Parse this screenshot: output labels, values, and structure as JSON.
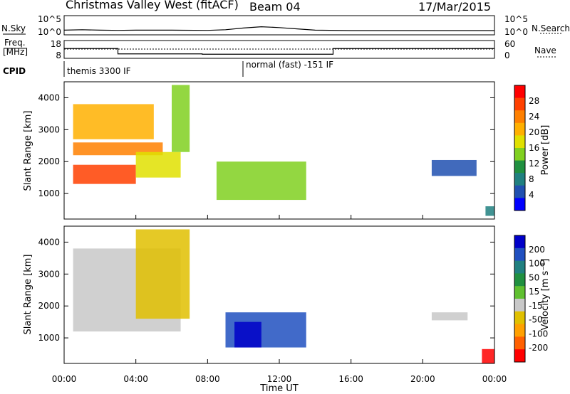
{
  "header": {
    "title": "Christmas Valley West (fitACF)",
    "beam": "Beam 04",
    "date": "17/Mar/2015"
  },
  "top_panels": {
    "nsky_label": "N.Sky",
    "nsearch_label": "N.Search",
    "freq_label_line1": "Freq.",
    "freq_label_line2": "[MHz]",
    "nave_label": "Nave",
    "cpid_label": "CPID",
    "noise_left_ticks": [
      "10^5",
      "10^0"
    ],
    "noise_right_ticks": [
      "10^5",
      "10^0"
    ],
    "freq_left_ticks": [
      "18",
      "8"
    ],
    "freq_right_ticks": [
      "60",
      "0"
    ],
    "cpid_segments": [
      "themis 3300 IF",
      "normal (fast) -151 IF"
    ]
  },
  "axes": {
    "ylabel": "Slant Range [km]",
    "xlabel": "Time UT",
    "x_ticks": [
      "00:00",
      "04:00",
      "08:00",
      "12:00",
      "16:00",
      "20:00",
      "00:00"
    ],
    "y_ticks": [
      "1000",
      "2000",
      "3000",
      "4000"
    ]
  },
  "power_colorbar": {
    "label": "Power [dB]",
    "ticks": [
      "28",
      "24",
      "20",
      "16",
      "12",
      "8",
      "4"
    ],
    "colors": [
      "#ff0000",
      "#ff4000",
      "#ff8000",
      "#ffb000",
      "#e0e000",
      "#80d020",
      "#209040",
      "#208080",
      "#2050b0",
      "#0000ff"
    ]
  },
  "velocity_colorbar": {
    "label": "Velocity [m s⁻¹]",
    "ticks": [
      "200",
      "100",
      "50",
      "15",
      "-15",
      "-50",
      "-100",
      "-200"
    ],
    "colors": [
      "#0000c8",
      "#2050c0",
      "#208080",
      "#209040",
      "#60c030",
      "#c8c8c8",
      "#e0c000",
      "#ffa000",
      "#ff6000",
      "#ff0000"
    ]
  },
  "chart_data": [
    {
      "type": "line",
      "name": "N.Sky / N.Search noise",
      "x_unit": "hours UT",
      "y_scale": "log",
      "ylim_labels": [
        "10^0",
        "10^5"
      ],
      "x": [
        0,
        1,
        2,
        3,
        4,
        6,
        8,
        9,
        10,
        11,
        12,
        13,
        14,
        16,
        18,
        20,
        22,
        24
      ],
      "values": [
        0.6,
        0.7,
        0.6,
        0.55,
        0.6,
        0.6,
        0.55,
        0.7,
        1.1,
        1.4,
        1.2,
        0.9,
        0.6,
        0.5,
        0.5,
        0.5,
        0.5,
        0.5
      ]
    },
    {
      "type": "line",
      "name": "Frequency",
      "ylim": [
        8,
        18
      ],
      "x": [
        0,
        3,
        3,
        7.7,
        7.7,
        15,
        15,
        24
      ],
      "values": [
        13.5,
        13.5,
        10.5,
        10.5,
        10.3,
        10.3,
        13.5,
        13.5
      ]
    },
    {
      "type": "heatmap",
      "name": "Power",
      "xlim": [
        0,
        24
      ],
      "ylim": [
        200,
        4500
      ],
      "clim": [
        0,
        30
      ],
      "regions": [
        {
          "x": [
            0.5,
            5.0
          ],
          "y": [
            2700,
            3800
          ],
          "value": 20
        },
        {
          "x": [
            0.5,
            5.5
          ],
          "y": [
            2200,
            2600
          ],
          "value": 24
        },
        {
          "x": [
            0.5,
            4.0
          ],
          "y": [
            1300,
            1900
          ],
          "value": 26
        },
        {
          "x": [
            4.0,
            6.5
          ],
          "y": [
            1500,
            2300
          ],
          "value": 18
        },
        {
          "x": [
            6.0,
            7.0
          ],
          "y": [
            2300,
            4400
          ],
          "value": 14
        },
        {
          "x": [
            8.5,
            13.5
          ],
          "y": [
            800,
            2000
          ],
          "value": 12
        },
        {
          "x": [
            20.5,
            23.0
          ],
          "y": [
            1550,
            2050
          ],
          "value": 5
        },
        {
          "x": [
            23.5,
            24.0
          ],
          "y": [
            300,
            600
          ],
          "value": 6
        }
      ]
    },
    {
      "type": "heatmap",
      "name": "Velocity",
      "xlim": [
        0,
        24
      ],
      "ylim": [
        200,
        4500
      ],
      "clim": [
        -200,
        200
      ],
      "regions": [
        {
          "x": [
            0.5,
            6.5
          ],
          "y": [
            1200,
            3800
          ],
          "value": 0
        },
        {
          "x": [
            4.0,
            7.0
          ],
          "y": [
            1600,
            4400
          ],
          "value": -50
        },
        {
          "x": [
            9.0,
            13.5
          ],
          "y": [
            700,
            1800
          ],
          "value": 150
        },
        {
          "x": [
            9.5,
            11.0
          ],
          "y": [
            700,
            1500
          ],
          "value": 200
        },
        {
          "x": [
            20.5,
            22.5
          ],
          "y": [
            1550,
            1800
          ],
          "value": 0
        },
        {
          "x": [
            23.3,
            24.0
          ],
          "y": [
            200,
            650
          ],
          "value": -200
        }
      ]
    }
  ]
}
